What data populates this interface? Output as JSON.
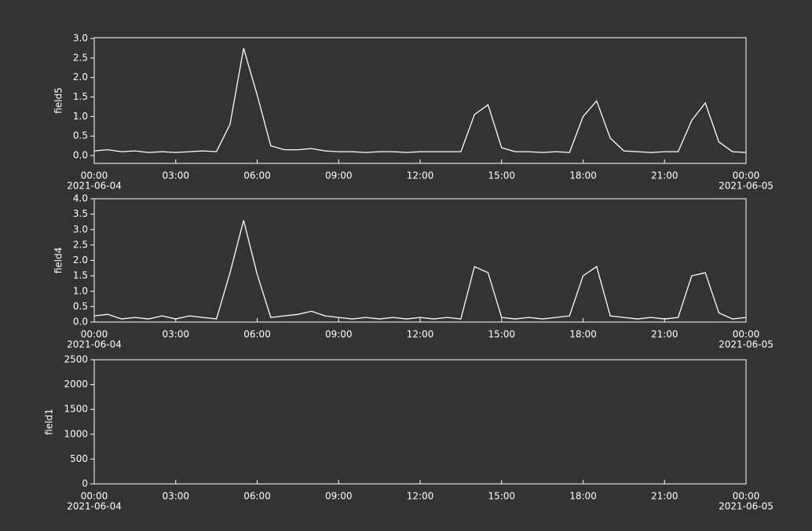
{
  "chart_data": [
    {
      "type": "line",
      "ylabel": "field5",
      "color": "#ffffff",
      "x": [
        "2021-06-04 00:00",
        "2021-06-04 00:30",
        "2021-06-04 01:00",
        "2021-06-04 01:30",
        "2021-06-04 02:00",
        "2021-06-04 02:30",
        "2021-06-04 03:00",
        "2021-06-04 03:30",
        "2021-06-04 04:00",
        "2021-06-04 04:30",
        "2021-06-04 05:00",
        "2021-06-04 05:30",
        "2021-06-04 06:00",
        "2021-06-04 06:30",
        "2021-06-04 07:00",
        "2021-06-04 07:30",
        "2021-06-04 08:00",
        "2021-06-04 08:30",
        "2021-06-04 09:00",
        "2021-06-04 09:30",
        "2021-06-04 10:00",
        "2021-06-04 10:30",
        "2021-06-04 11:00",
        "2021-06-04 11:30",
        "2021-06-04 12:00",
        "2021-06-04 12:30",
        "2021-06-04 13:00",
        "2021-06-04 13:30",
        "2021-06-04 14:00",
        "2021-06-04 14:30",
        "2021-06-04 15:00",
        "2021-06-04 15:30",
        "2021-06-04 16:00",
        "2021-06-04 16:30",
        "2021-06-04 17:00",
        "2021-06-04 17:30",
        "2021-06-04 18:00",
        "2021-06-04 18:30",
        "2021-06-04 19:00",
        "2021-06-04 19:30",
        "2021-06-04 20:00",
        "2021-06-04 20:30",
        "2021-06-04 21:00",
        "2021-06-04 21:30",
        "2021-06-04 22:00",
        "2021-06-04 22:30",
        "2021-06-04 23:00",
        "2021-06-04 23:30",
        "2021-06-05 00:00"
      ],
      "values": [
        0.12,
        0.15,
        0.1,
        0.12,
        0.08,
        0.1,
        0.08,
        0.1,
        0.12,
        0.1,
        0.8,
        2.75,
        1.55,
        0.25,
        0.15,
        0.15,
        0.18,
        0.12,
        0.1,
        0.1,
        0.08,
        0.1,
        0.1,
        0.08,
        0.1,
        0.1,
        0.1,
        0.1,
        1.05,
        1.3,
        0.2,
        0.1,
        0.1,
        0.08,
        0.1,
        0.08,
        1.0,
        1.4,
        0.45,
        0.12,
        0.1,
        0.08,
        0.1,
        0.1,
        0.9,
        1.35,
        0.35,
        0.1,
        0.08
      ],
      "xlim": [
        "2021-06-04 00:00",
        "2021-06-05 00:00"
      ],
      "xticks": [
        {
          "value": "2021-06-04 00:00",
          "label": "00:00"
        },
        {
          "value": "2021-06-04 03:00",
          "label": "03:00"
        },
        {
          "value": "2021-06-04 06:00",
          "label": "06:00"
        },
        {
          "value": "2021-06-04 09:00",
          "label": "09:00"
        },
        {
          "value": "2021-06-04 12:00",
          "label": "12:00"
        },
        {
          "value": "2021-06-04 15:00",
          "label": "15:00"
        },
        {
          "value": "2021-06-04 18:00",
          "label": "18:00"
        },
        {
          "value": "2021-06-04 21:00",
          "label": "21:00"
        },
        {
          "value": "2021-06-05 00:00",
          "label": "00:00"
        }
      ],
      "xtick_dates": [
        {
          "value": "2021-06-04 00:00",
          "label": "2021-06-04"
        },
        {
          "value": "2021-06-05 00:00",
          "label": "2021-06-05"
        }
      ],
      "ylim": [
        -0.2,
        3.02
      ],
      "yticks": [
        {
          "value": 0,
          "label": "0.0"
        },
        0.5,
        {
          "value": 1,
          "label": "1.0"
        },
        1.5,
        {
          "value": 2,
          "label": "2.0"
        },
        2.5,
        {
          "value": 3,
          "label": "3.0"
        }
      ]
    },
    {
      "type": "line",
      "ylabel": "field4",
      "color": "#ffffff",
      "x": [
        "2021-06-04 00:00",
        "2021-06-04 00:30",
        "2021-06-04 01:00",
        "2021-06-04 01:30",
        "2021-06-04 02:00",
        "2021-06-04 02:30",
        "2021-06-04 03:00",
        "2021-06-04 03:30",
        "2021-06-04 04:00",
        "2021-06-04 04:30",
        "2021-06-04 05:00",
        "2021-06-04 05:30",
        "2021-06-04 06:00",
        "2021-06-04 06:30",
        "2021-06-04 07:00",
        "2021-06-04 07:30",
        "2021-06-04 08:00",
        "2021-06-04 08:30",
        "2021-06-04 09:00",
        "2021-06-04 09:30",
        "2021-06-04 10:00",
        "2021-06-04 10:30",
        "2021-06-04 11:00",
        "2021-06-04 11:30",
        "2021-06-04 12:00",
        "2021-06-04 12:30",
        "2021-06-04 13:00",
        "2021-06-04 13:30",
        "2021-06-04 14:00",
        "2021-06-04 14:30",
        "2021-06-04 15:00",
        "2021-06-04 15:30",
        "2021-06-04 16:00",
        "2021-06-04 16:30",
        "2021-06-04 17:00",
        "2021-06-04 17:30",
        "2021-06-04 18:00",
        "2021-06-04 18:30",
        "2021-06-04 19:00",
        "2021-06-04 19:30",
        "2021-06-04 20:00",
        "2021-06-04 20:30",
        "2021-06-04 21:00",
        "2021-06-04 21:30",
        "2021-06-04 22:00",
        "2021-06-04 22:30",
        "2021-06-04 23:00",
        "2021-06-04 23:30",
        "2021-06-05 00:00"
      ],
      "values": [
        0.2,
        0.25,
        0.1,
        0.15,
        0.1,
        0.2,
        0.1,
        0.2,
        0.15,
        0.1,
        1.6,
        3.3,
        1.55,
        0.15,
        0.2,
        0.25,
        0.35,
        0.2,
        0.15,
        0.1,
        0.15,
        0.1,
        0.15,
        0.1,
        0.15,
        0.1,
        0.15,
        0.1,
        1.8,
        1.6,
        0.15,
        0.1,
        0.15,
        0.1,
        0.15,
        0.2,
        1.5,
        1.8,
        0.2,
        0.15,
        0.1,
        0.15,
        0.1,
        0.15,
        1.5,
        1.6,
        0.3,
        0.1,
        0.15
      ],
      "xlim": [
        "2021-06-04 00:00",
        "2021-06-05 00:00"
      ],
      "xticks": [
        {
          "value": "2021-06-04 00:00",
          "label": "00:00"
        },
        {
          "value": "2021-06-04 03:00",
          "label": "03:00"
        },
        {
          "value": "2021-06-04 06:00",
          "label": "06:00"
        },
        {
          "value": "2021-06-04 09:00",
          "label": "09:00"
        },
        {
          "value": "2021-06-04 12:00",
          "label": "12:00"
        },
        {
          "value": "2021-06-04 15:00",
          "label": "15:00"
        },
        {
          "value": "2021-06-04 18:00",
          "label": "18:00"
        },
        {
          "value": "2021-06-04 21:00",
          "label": "21:00"
        },
        {
          "value": "2021-06-05 00:00",
          "label": "00:00"
        }
      ],
      "xtick_dates": [
        {
          "value": "2021-06-04 00:00",
          "label": "2021-06-04"
        },
        {
          "value": "2021-06-05 00:00",
          "label": "2021-06-05"
        }
      ],
      "ylim": [
        0,
        4
      ],
      "yticks": [
        {
          "value": 0,
          "label": "0.0"
        },
        0.5,
        {
          "value": 1,
          "label": "1.0"
        },
        1.5,
        {
          "value": 2,
          "label": "2.0"
        },
        2.5,
        {
          "value": 3,
          "label": "3.0"
        },
        3.5,
        {
          "value": 4,
          "label": "4.0"
        }
      ]
    },
    {
      "type": "line",
      "ylabel": "field1",
      "xlim": [
        "2021-06-04 00:00",
        "2021-06-05 00:00"
      ],
      "xticks": [
        {
          "value": "2021-06-04 00:00",
          "label": "00:00"
        },
        {
          "value": "2021-06-04 03:00",
          "label": "03:00"
        },
        {
          "value": "2021-06-04 06:00",
          "label": "06:00"
        },
        {
          "value": "2021-06-04 09:00",
          "label": "09:00"
        },
        {
          "value": "2021-06-04 12:00",
          "label": "12:00"
        },
        {
          "value": "2021-06-04 15:00",
          "label": "15:00"
        },
        {
          "value": "2021-06-04 18:00",
          "label": "18:00"
        },
        {
          "value": "2021-06-04 21:00",
          "label": "21:00"
        },
        {
          "value": "2021-06-05 00:00",
          "label": "00:00"
        }
      ],
      "xtick_dates": [
        {
          "value": "2021-06-04 00:00",
          "label": "2021-06-04"
        },
        {
          "value": "2021-06-05 00:00",
          "label": "2021-06-05"
        }
      ],
      "ylim": [
        0,
        2500
      ],
      "yticks": [
        0,
        500,
        1000,
        1500,
        2000,
        2500
      ]
    }
  ]
}
